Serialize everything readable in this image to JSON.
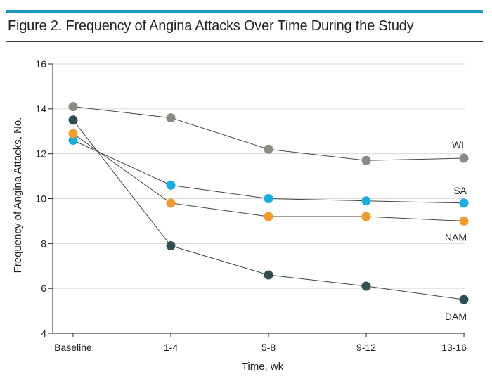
{
  "figure": {
    "title": "Figure 2. Frequency of Angina Attacks Over Time During the Study"
  },
  "colors": {
    "accent": "#1b95c6",
    "gridline": "#d9d9d9",
    "axis": "#222222"
  },
  "chart_data": {
    "type": "line",
    "title": "Figure 2. Frequency of Angina Attacks Over Time During the Study",
    "xlabel": "Time, wk",
    "ylabel": "Frequency of Angina Attacks, No.",
    "categories": [
      "Baseline",
      "1-4",
      "5-8",
      "9-12",
      "13-16"
    ],
    "ylim": [
      4,
      16
    ],
    "yticks": [
      4,
      6,
      8,
      10,
      12,
      14,
      16
    ],
    "grid": true,
    "series": [
      {
        "name": "WL",
        "color": "#8c8a82",
        "values": [
          14.1,
          13.6,
          12.2,
          11.7,
          11.8
        ]
      },
      {
        "name": "SA",
        "color": "#17aee3",
        "values": [
          12.6,
          10.6,
          10.0,
          9.9,
          9.8
        ]
      },
      {
        "name": "NAM",
        "color": "#f39a2b",
        "values": [
          12.9,
          9.8,
          9.2,
          9.2,
          9.0
        ]
      },
      {
        "name": "DAM",
        "color": "#2f4f54",
        "values": [
          13.5,
          7.9,
          6.6,
          6.1,
          5.5
        ]
      }
    ]
  }
}
